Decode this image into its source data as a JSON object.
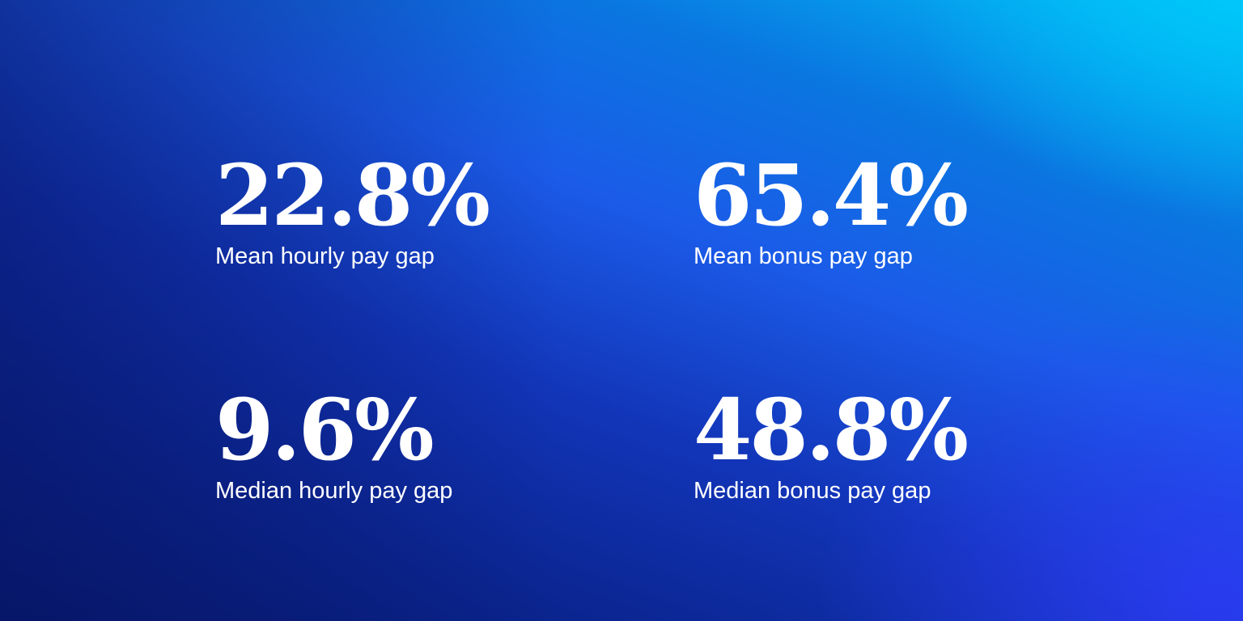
{
  "stats": [
    {
      "value": "22.8%",
      "label": "Mean hourly pay gap"
    },
    {
      "value": "65.4%",
      "label": "Mean bonus pay gap"
    },
    {
      "value": "9.6%",
      "label": "Median hourly pay gap"
    },
    {
      "value": "48.8%",
      "label": "Median bonus pay gap"
    }
  ],
  "colors": {
    "text": "#ffffff",
    "gradient_dark": "#06196e",
    "gradient_mid": "#1b5be8",
    "gradient_light": "#00c3f8",
    "gradient_violet": "#303cff"
  }
}
